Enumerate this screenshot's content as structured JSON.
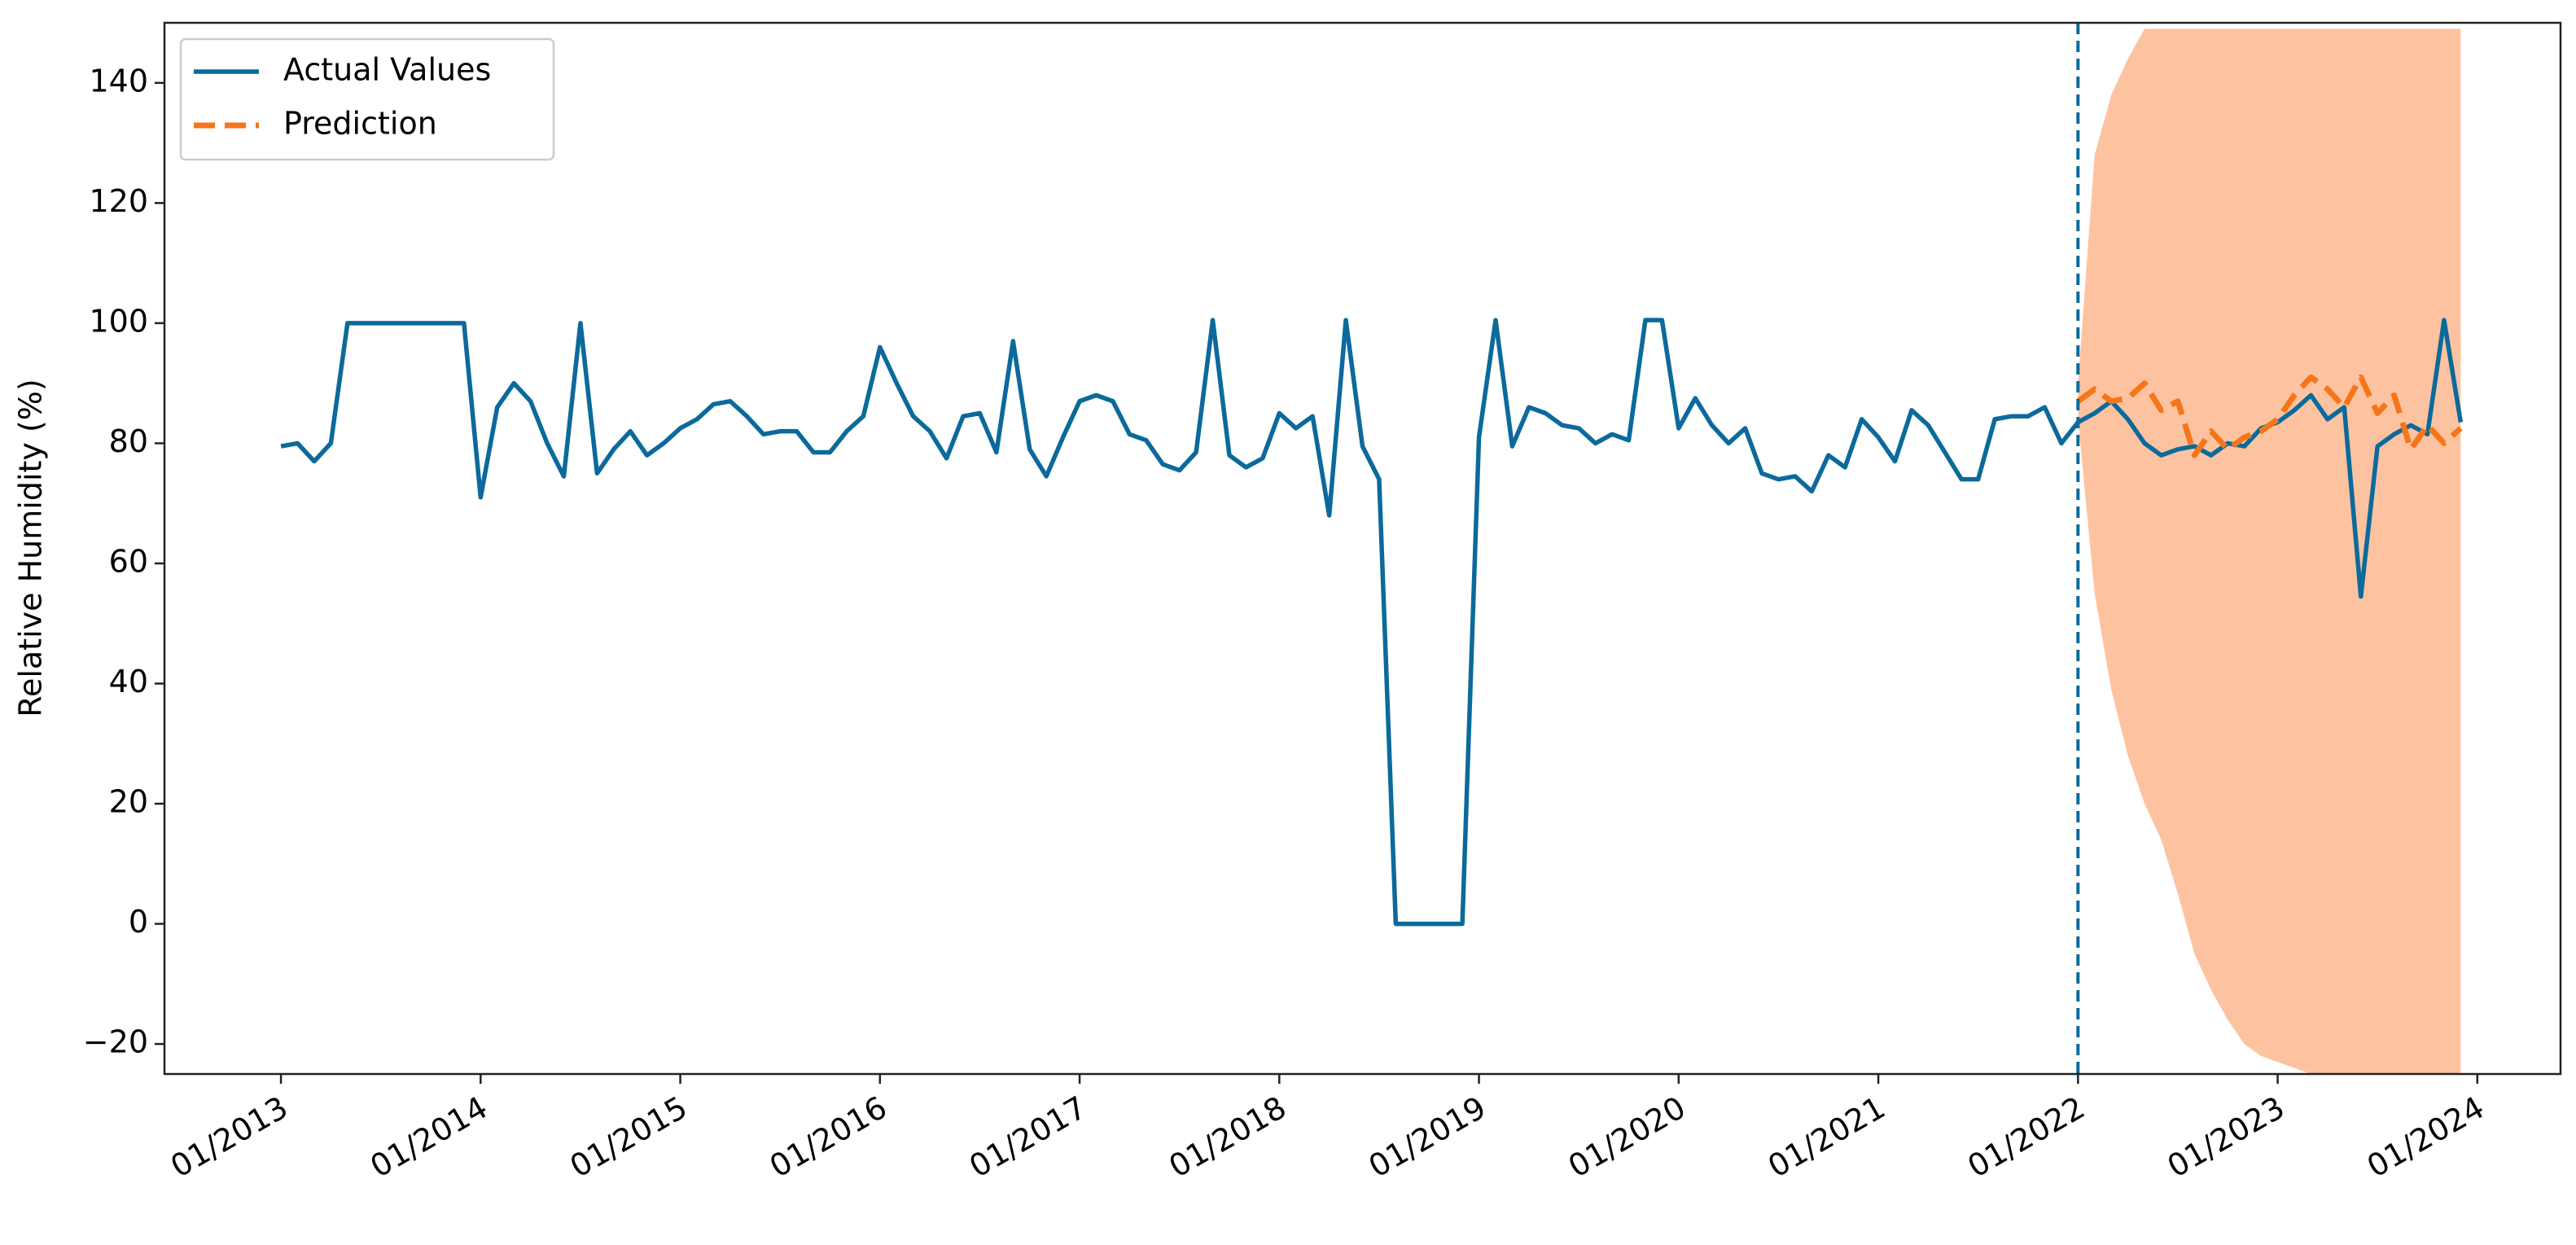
{
  "chart_data": {
    "type": "line",
    "y_label": "Relative Humidity (%)",
    "x": [
      "2013-01",
      "2013-02",
      "2013-03",
      "2013-04",
      "2013-05",
      "2013-06",
      "2013-07",
      "2013-08",
      "2013-09",
      "2013-10",
      "2013-11",
      "2013-12",
      "2014-01",
      "2014-02",
      "2014-03",
      "2014-04",
      "2014-05",
      "2014-06",
      "2014-07",
      "2014-08",
      "2014-09",
      "2014-10",
      "2014-11",
      "2014-12",
      "2015-01",
      "2015-02",
      "2015-03",
      "2015-04",
      "2015-05",
      "2015-06",
      "2015-07",
      "2015-08",
      "2015-09",
      "2015-10",
      "2015-11",
      "2015-12",
      "2016-01",
      "2016-02",
      "2016-03",
      "2016-04",
      "2016-05",
      "2016-06",
      "2016-07",
      "2016-08",
      "2016-09",
      "2016-10",
      "2016-11",
      "2016-12",
      "2017-01",
      "2017-02",
      "2017-03",
      "2017-04",
      "2017-05",
      "2017-06",
      "2017-07",
      "2017-08",
      "2017-09",
      "2017-10",
      "2017-11",
      "2017-12",
      "2018-01",
      "2018-02",
      "2018-03",
      "2018-04",
      "2018-05",
      "2018-06",
      "2018-07",
      "2018-08",
      "2018-09",
      "2018-10",
      "2018-11",
      "2018-12",
      "2019-01",
      "2019-02",
      "2019-03",
      "2019-04",
      "2019-05",
      "2019-06",
      "2019-07",
      "2019-08",
      "2019-09",
      "2019-10",
      "2019-11",
      "2019-12",
      "2020-01",
      "2020-02",
      "2020-03",
      "2020-04",
      "2020-05",
      "2020-06",
      "2020-07",
      "2020-08",
      "2020-09",
      "2020-10",
      "2020-11",
      "2020-12",
      "2021-01",
      "2021-02",
      "2021-03",
      "2021-04",
      "2021-05",
      "2021-06",
      "2021-07",
      "2021-08",
      "2021-09",
      "2021-10",
      "2021-11",
      "2021-12",
      "2022-01",
      "2022-02",
      "2022-03",
      "2022-04",
      "2022-05",
      "2022-06",
      "2022-07",
      "2022-08",
      "2022-09",
      "2022-10",
      "2022-11",
      "2022-12",
      "2023-01",
      "2023-02",
      "2023-03",
      "2023-04",
      "2023-05",
      "2023-06",
      "2023-07",
      "2023-08",
      "2023-09",
      "2023-10",
      "2023-11",
      "2023-12"
    ],
    "series": [
      {
        "name": "Actual Values",
        "color": "#0b6a9b",
        "dash": "solid",
        "values": [
          79.5,
          80,
          77,
          80,
          100,
          100,
          100,
          100,
          100,
          100,
          100,
          100,
          71,
          86,
          90,
          87,
          80,
          74.5,
          100,
          75,
          79,
          82,
          78,
          80,
          82.5,
          84,
          86.5,
          87,
          84.5,
          81.5,
          82,
          82,
          78.5,
          78.5,
          82,
          84.5,
          96,
          90,
          84.5,
          82,
          77.5,
          84.5,
          85,
          78.5,
          97,
          79,
          74.5,
          81,
          87,
          88,
          87,
          81.5,
          80.5,
          76.5,
          75.5,
          78.5,
          100.5,
          78,
          76,
          77.5,
          85,
          82.5,
          84.5,
          68,
          100.5,
          79.5,
          74,
          0,
          0,
          0,
          0,
          0,
          81,
          100.5,
          79.5,
          86,
          85,
          83,
          82.5,
          80,
          81.5,
          80.5,
          100.5,
          100.5,
          82.5,
          87.5,
          83,
          80,
          82.5,
          75,
          74,
          74.5,
          72,
          78,
          76,
          84,
          81,
          77,
          85.5,
          83,
          78.5,
          74,
          74,
          84,
          84.5,
          84.5,
          86,
          80,
          83.5,
          85,
          87,
          84,
          80,
          78,
          79,
          79.5,
          78,
          80,
          79.5,
          82.5,
          83.5,
          85.5,
          88,
          84,
          86,
          54.5,
          79.5,
          81.5,
          83,
          81.5,
          100.5,
          83.5
        ]
      },
      {
        "name": "Prediction",
        "color": "#f5761a",
        "dash": "dashed",
        "values": [
          null,
          null,
          null,
          null,
          null,
          null,
          null,
          null,
          null,
          null,
          null,
          null,
          null,
          null,
          null,
          null,
          null,
          null,
          null,
          null,
          null,
          null,
          null,
          null,
          null,
          null,
          null,
          null,
          null,
          null,
          null,
          null,
          null,
          null,
          null,
          null,
          null,
          null,
          null,
          null,
          null,
          null,
          null,
          null,
          null,
          null,
          null,
          null,
          null,
          null,
          null,
          null,
          null,
          null,
          null,
          null,
          null,
          null,
          null,
          null,
          null,
          null,
          null,
          null,
          null,
          null,
          null,
          null,
          null,
          null,
          null,
          null,
          null,
          null,
          null,
          null,
          null,
          null,
          null,
          null,
          null,
          null,
          null,
          null,
          null,
          null,
          null,
          null,
          null,
          null,
          null,
          null,
          null,
          null,
          null,
          null,
          null,
          null,
          null,
          null,
          null,
          null,
          null,
          null,
          null,
          null,
          null,
          null,
          87,
          89,
          87,
          87.5,
          90,
          85.5,
          87,
          78,
          82,
          79,
          81,
          82,
          84,
          88,
          91,
          89,
          86,
          91,
          85,
          88,
          79,
          83,
          80,
          82.5
        ]
      }
    ],
    "band": {
      "color": "#fdc3a0",
      "upper": [
        null,
        null,
        null,
        null,
        null,
        null,
        null,
        null,
        null,
        null,
        null,
        null,
        null,
        null,
        null,
        null,
        null,
        null,
        null,
        null,
        null,
        null,
        null,
        null,
        null,
        null,
        null,
        null,
        null,
        null,
        null,
        null,
        null,
        null,
        null,
        null,
        null,
        null,
        null,
        null,
        null,
        null,
        null,
        null,
        null,
        null,
        null,
        null,
        null,
        null,
        null,
        null,
        null,
        null,
        null,
        null,
        null,
        null,
        null,
        null,
        null,
        null,
        null,
        null,
        null,
        null,
        null,
        null,
        null,
        null,
        null,
        null,
        null,
        null,
        null,
        null,
        null,
        null,
        null,
        null,
        null,
        null,
        null,
        null,
        null,
        null,
        null,
        null,
        null,
        null,
        null,
        null,
        null,
        null,
        null,
        null,
        null,
        null,
        null,
        null,
        null,
        null,
        null,
        null,
        null,
        null,
        null,
        null,
        90,
        128,
        138,
        144,
        149,
        149,
        149,
        149,
        149,
        149,
        149,
        149,
        149,
        149,
        149,
        149,
        149,
        149,
        149,
        149,
        149,
        149,
        149,
        149
      ],
      "lower": [
        null,
        null,
        null,
        null,
        null,
        null,
        null,
        null,
        null,
        null,
        null,
        null,
        null,
        null,
        null,
        null,
        null,
        null,
        null,
        null,
        null,
        null,
        null,
        null,
        null,
        null,
        null,
        null,
        null,
        null,
        null,
        null,
        null,
        null,
        null,
        null,
        null,
        null,
        null,
        null,
        null,
        null,
        null,
        null,
        null,
        null,
        null,
        null,
        null,
        null,
        null,
        null,
        null,
        null,
        null,
        null,
        null,
        null,
        null,
        null,
        null,
        null,
        null,
        null,
        null,
        null,
        null,
        null,
        null,
        null,
        null,
        null,
        null,
        null,
        null,
        null,
        null,
        null,
        null,
        null,
        null,
        null,
        null,
        null,
        null,
        null,
        null,
        null,
        null,
        null,
        null,
        null,
        null,
        null,
        null,
        null,
        null,
        null,
        null,
        null,
        null,
        null,
        null,
        null,
        null,
        null,
        null,
        null,
        84,
        55,
        39,
        28,
        20,
        14,
        5,
        -5,
        -11,
        -16,
        -20,
        -22,
        -23,
        -24,
        -25,
        -25,
        -25,
        -25,
        -25,
        -25,
        -25,
        -25,
        -25,
        -25
      ]
    },
    "forecast_start": "2022-01",
    "xlim": [
      "2012-06",
      "2024-06"
    ],
    "ylim": [
      -25,
      150
    ],
    "yticks": [
      {
        "value": -20,
        "label": "−20"
      },
      0,
      20,
      40,
      60,
      80,
      100,
      120,
      140
    ],
    "xticks": [
      {
        "value": "2013-01",
        "label": "01/2013"
      },
      {
        "value": "2014-01",
        "label": "01/2014"
      },
      {
        "value": "2015-01",
        "label": "01/2015"
      },
      {
        "value": "2016-01",
        "label": "01/2016"
      },
      {
        "value": "2017-01",
        "label": "01/2017"
      },
      {
        "value": "2018-01",
        "label": "01/2018"
      },
      {
        "value": "2019-01",
        "label": "01/2019"
      },
      {
        "value": "2020-01",
        "label": "01/2020"
      },
      {
        "value": "2021-01",
        "label": "01/2021"
      },
      {
        "value": "2022-01",
        "label": "01/2022"
      },
      {
        "value": "2023-01",
        "label": "01/2023"
      },
      {
        "value": "2024-01",
        "label": "01/2024"
      }
    ],
    "grid": false,
    "legend": "upper left"
  }
}
